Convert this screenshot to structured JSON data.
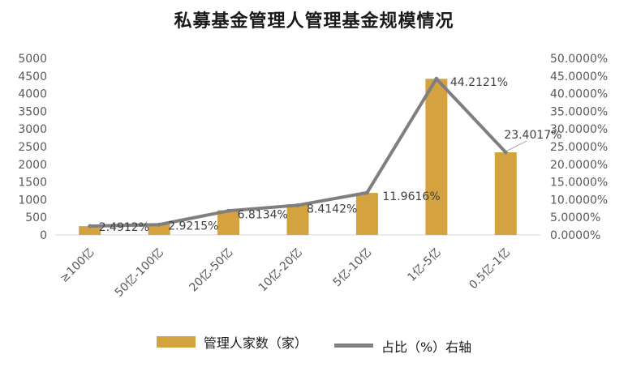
{
  "chart_data": {
    "type": "bar+line",
    "title": "私募基金管理人管理基金规模情况",
    "categories": [
      "≥100亿",
      "50亿-100亿",
      "20亿-50亿",
      "10亿-20亿",
      "5亿-10亿",
      "1亿-5亿",
      "0.5亿-1亿"
    ],
    "series": [
      {
        "name": "管理人家数（家）",
        "type": "bar",
        "axis": "left",
        "color": "#D4A23F",
        "values": [
          250,
          300,
          700,
          870,
          1190,
          4420,
          2340
        ]
      },
      {
        "name": "占比（%）右轴",
        "type": "line",
        "axis": "right",
        "color": "#7F7F7F",
        "values": [
          2.4912,
          2.9215,
          6.8134,
          8.4142,
          11.9616,
          44.2121,
          23.4017
        ],
        "labels": [
          "2.4912%",
          "2.9215%",
          "6.8134%",
          "8.4142%",
          "11.9616%",
          "44.2121%",
          "23.4017%"
        ]
      }
    ],
    "y_left": {
      "range": [
        0,
        5000
      ],
      "ticks": [
        "0",
        "500",
        "1000",
        "1500",
        "2000",
        "2500",
        "3000",
        "3500",
        "4000",
        "4500",
        "5000"
      ]
    },
    "y_right": {
      "range": [
        0,
        50
      ],
      "ticks": [
        "0.0000%",
        "5.0000%",
        "10.0000%",
        "15.0000%",
        "20.0000%",
        "25.0000%",
        "30.0000%",
        "35.0000%",
        "40.0000%",
        "45.0000%",
        "50.0000%"
      ]
    },
    "grid": false,
    "legend_position": "bottom"
  }
}
